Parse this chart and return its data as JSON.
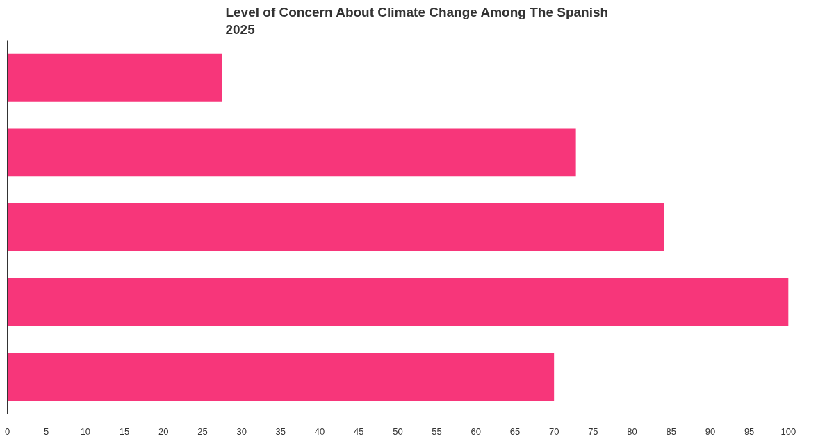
{
  "chart_data": {
    "type": "bar",
    "orientation": "horizontal",
    "title": "Level of Concern About Climate Change Among The Spanish\n2025",
    "categories": [
      null,
      null,
      null,
      null,
      null
    ],
    "values": [
      27.5,
      72.8,
      84.1,
      100,
      70
    ],
    "color": "#f7367a",
    "xlim": [
      0,
      105
    ],
    "xticks": [
      0,
      5,
      10,
      15,
      20,
      25,
      30,
      35,
      40,
      45,
      50,
      55,
      60,
      65,
      70,
      75,
      80,
      85,
      90,
      95,
      100
    ],
    "tick_labels": "x",
    "grid": false
  }
}
